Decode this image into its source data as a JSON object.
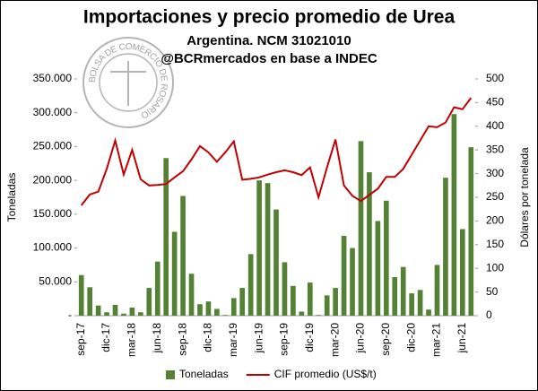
{
  "chart_data": {
    "type": "bar",
    "title": "Importaciones y precio promedio de Urea",
    "subtitle": "Argentina. NCM 31021010",
    "subtitle2": "@BCRmercados en base a INDEC",
    "logo_text": "BOLSA DE COMERCIO DE ROSARIO",
    "ylabel": "Toneladas",
    "y2label": "Dólares por tonelada",
    "categories": [
      "sep-17",
      null,
      null,
      "dic-17",
      null,
      null,
      "mar-18",
      null,
      null,
      "jun-18",
      null,
      null,
      "sep-18",
      null,
      null,
      "dic-18",
      null,
      null,
      "mar-19",
      null,
      null,
      "jun-19",
      null,
      null,
      "sep-19",
      null,
      null,
      "dic-19",
      null,
      null,
      "mar-20",
      null,
      null,
      "jun-20",
      null,
      null,
      "sep-20",
      null,
      null,
      "dic-20",
      null,
      null,
      "mar-21",
      null,
      null,
      "jun-21",
      null
    ],
    "series": [
      {
        "name": "Toneladas",
        "type": "bar",
        "color": "#548235",
        "values": [
          60000,
          42000,
          15000,
          5000,
          16000,
          3000,
          12000,
          5000,
          41000,
          80000,
          233000,
          124000,
          177000,
          62000,
          17000,
          21000,
          10000,
          1000,
          26000,
          41000,
          91000,
          200000,
          196000,
          157000,
          79000,
          44000,
          6000,
          49000,
          1000,
          30000,
          41000,
          118000,
          100000,
          258000,
          212000,
          140000,
          170000,
          57000,
          72000,
          33000,
          38000,
          9000,
          75000,
          204000,
          298000,
          128000,
          249000
        ]
      },
      {
        "name": "CIF promedio (US$/t)",
        "type": "line",
        "axis": "y2",
        "color": "#c00000",
        "values": [
          233,
          256,
          262,
          310,
          370,
          298,
          350,
          288,
          275,
          276,
          278,
          292,
          305,
          330,
          358,
          345,
          325,
          345,
          368,
          287,
          289,
          292,
          298,
          303,
          307,
          303,
          297,
          313,
          250,
          313,
          372,
          275,
          253,
          242,
          255,
          268,
          293,
          293,
          310,
          340,
          370,
          400,
          398,
          408,
          440,
          436,
          460
        ]
      }
    ],
    "ylim": [
      0,
      350000
    ],
    "yticks": [
      {
        "value": 0,
        "label": "-"
      },
      {
        "value": 50000,
        "label": "50.000"
      },
      {
        "value": 100000,
        "label": "100.000"
      },
      {
        "value": 150000,
        "label": "150.000"
      },
      {
        "value": 200000,
        "label": "200.000"
      },
      {
        "value": 250000,
        "label": "250.000"
      },
      {
        "value": 300000,
        "label": "300.000"
      },
      {
        "value": 350000,
        "label": "350.000"
      }
    ],
    "y2lim": [
      0,
      500
    ],
    "y2ticks": [
      0,
      50,
      100,
      150,
      200,
      250,
      300,
      350,
      400,
      450,
      500
    ],
    "grid": false,
    "legend": "bottom"
  }
}
